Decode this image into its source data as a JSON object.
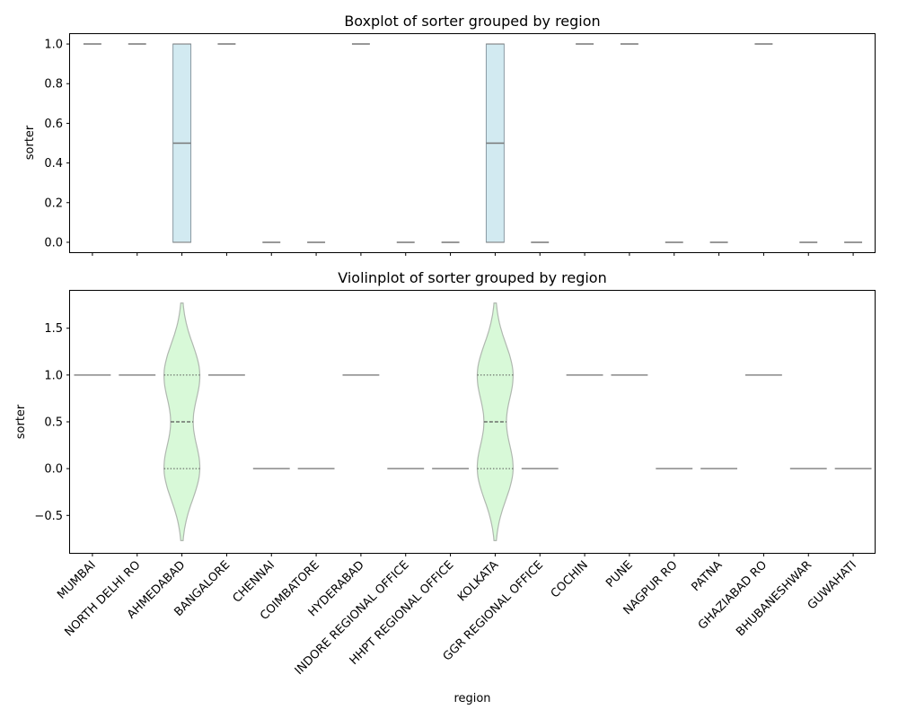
{
  "chart_data": [
    {
      "type": "box",
      "title": "Boxplot of sorter grouped by region",
      "xlabel": "",
      "ylabel": "sorter",
      "ylim": [
        -0.05,
        1.05
      ],
      "yticks": [
        "0.0",
        "0.2",
        "0.4",
        "0.6",
        "0.8",
        "1.0"
      ],
      "ytick_values": [
        0,
        0.2,
        0.4,
        0.6,
        0.8,
        1.0
      ],
      "show_xtick_labels": false,
      "box_color": "#add8e6",
      "categories": [
        "MUMBAI",
        "NORTH DELHI RO",
        "AHMEDABAD",
        "BANGALORE",
        "CHENNAI",
        "COIMBATORE",
        "HYDERABAD",
        "INDORE REGIONAL OFFICE",
        "HHPT REGIONAL OFFICE",
        "KOLKATA",
        "GGR REGIONAL OFFICE",
        "COCHIN",
        "PUNE",
        "NAGPUR RO",
        "PATNA",
        "GHAZIABAD RO",
        "BHUBANESHWAR",
        "GUWAHATI"
      ],
      "stats": [
        {
          "q1": 1,
          "median": 1,
          "q3": 1
        },
        {
          "q1": 1,
          "median": 1,
          "q3": 1
        },
        {
          "q1": 0,
          "median": 0.5,
          "q3": 1
        },
        {
          "q1": 1,
          "median": 1,
          "q3": 1
        },
        {
          "q1": 0,
          "median": 0,
          "q3": 0
        },
        {
          "q1": 0,
          "median": 0,
          "q3": 0
        },
        {
          "q1": 1,
          "median": 1,
          "q3": 1
        },
        {
          "q1": 0,
          "median": 0,
          "q3": 0
        },
        {
          "q1": 0,
          "median": 0,
          "q3": 0
        },
        {
          "q1": 0,
          "median": 0.5,
          "q3": 1
        },
        {
          "q1": 0,
          "median": 0,
          "q3": 0
        },
        {
          "q1": 1,
          "median": 1,
          "q3": 1
        },
        {
          "q1": 1,
          "median": 1,
          "q3": 1
        },
        {
          "q1": 0,
          "median": 0,
          "q3": 0
        },
        {
          "q1": 0,
          "median": 0,
          "q3": 0
        },
        {
          "q1": 1,
          "median": 1,
          "q3": 1
        },
        {
          "q1": 0,
          "median": 0,
          "q3": 0
        },
        {
          "q1": 0,
          "median": 0,
          "q3": 0
        }
      ]
    },
    {
      "type": "violin",
      "title": "Violinplot of sorter grouped by region",
      "xlabel": "region",
      "ylabel": "sorter",
      "ylim": [
        -0.9,
        1.9
      ],
      "yticks": [
        "−0.5",
        "0.0",
        "0.5",
        "1.0",
        "1.5"
      ],
      "ytick_values": [
        -0.5,
        0,
        0.5,
        1.0,
        1.5
      ],
      "violin_color": "#90ee90",
      "categories": [
        "MUMBAI",
        "NORTH DELHI RO",
        "AHMEDABAD",
        "BANGALORE",
        "CHENNAI",
        "COIMBATORE",
        "HYDERABAD",
        "INDORE REGIONAL OFFICE",
        "HHPT REGIONAL OFFICE",
        "KOLKATA",
        "GGR REGIONAL OFFICE",
        "COCHIN",
        "PUNE",
        "NAGPUR RO",
        "PATNA",
        "GHAZIABAD RO",
        "BHUBANESHWAR",
        "GUWAHATI"
      ],
      "values": [
        1,
        1,
        0.5,
        1,
        0,
        0,
        1,
        0,
        0,
        0.5,
        0,
        1,
        1,
        0,
        0,
        1,
        0,
        0
      ],
      "violin_range": [
        -0.77,
        1.77
      ]
    }
  ]
}
